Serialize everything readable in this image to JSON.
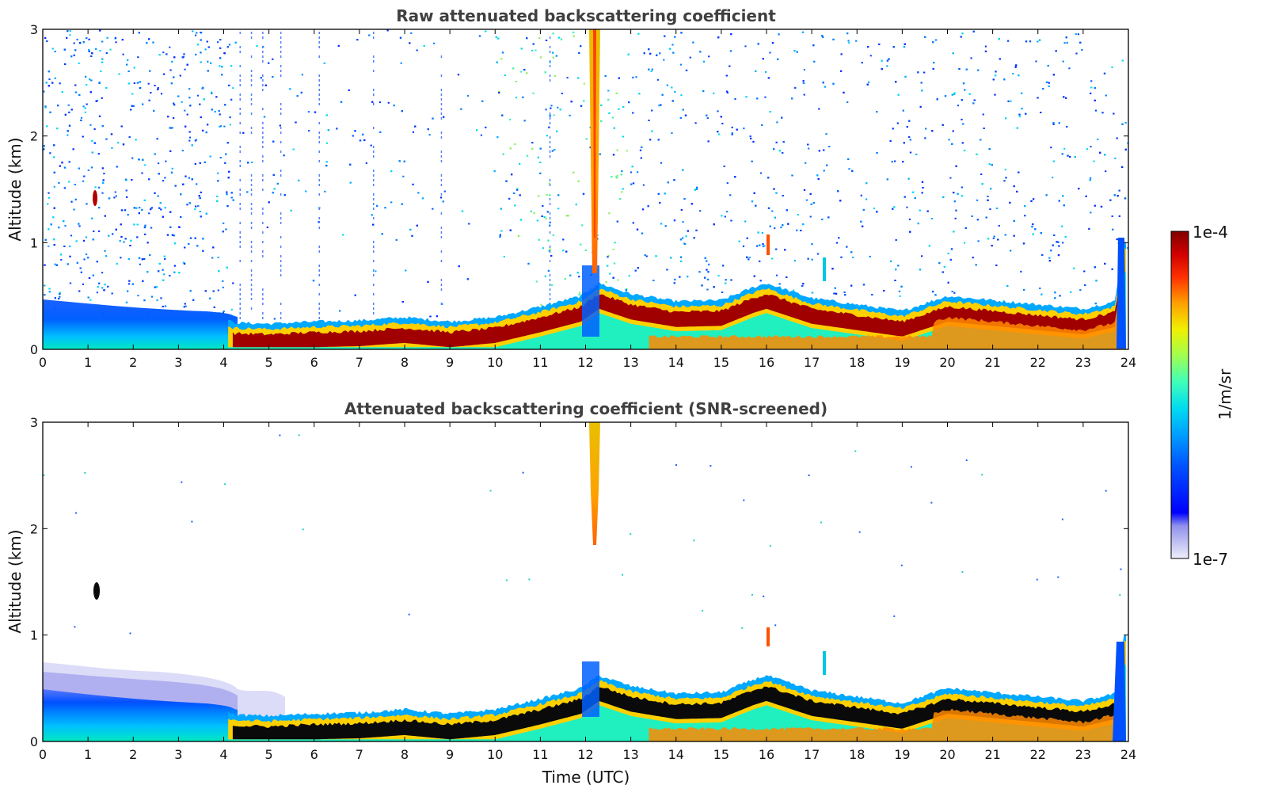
{
  "chart_data": [
    {
      "type": "heatmap",
      "title": "Raw attenuated backscattering coefficient",
      "xlabel": "",
      "ylabel": "Altitude (km)",
      "xlim": [
        0,
        24
      ],
      "ylim": [
        0,
        3
      ],
      "xticks": [
        "0",
        "1",
        "2",
        "3",
        "4",
        "5",
        "6",
        "7",
        "8",
        "9",
        "10",
        "11",
        "12",
        "13",
        "14",
        "15",
        "16",
        "17",
        "18",
        "19",
        "20",
        "21",
        "22",
        "23",
        "24"
      ],
      "yticks": [
        "0",
        "1",
        "2",
        "3"
      ],
      "aerosol_layer_top_km": {
        "x": [
          0,
          1,
          2,
          3,
          4,
          4.2,
          5,
          6,
          7,
          8,
          9,
          10,
          11,
          11.9,
          12.3,
          13,
          14,
          15,
          15.7,
          16,
          17,
          18,
          19,
          20,
          21,
          22,
          23,
          23.7,
          23.9
        ],
        "y": [
          0.45,
          0.42,
          0.38,
          0.36,
          0.3,
          0.25,
          0.24,
          0.26,
          0.27,
          0.3,
          0.26,
          0.3,
          0.4,
          0.5,
          0.62,
          0.52,
          0.45,
          0.46,
          0.58,
          0.62,
          0.48,
          0.42,
          0.36,
          0.5,
          0.46,
          0.42,
          0.38,
          0.45,
          1.0
        ]
      },
      "features": [
        {
          "label": "elevated cloud",
          "x": 1.15,
          "y_km": [
            1.32,
            1.48
          ]
        },
        {
          "label": "precipitation streak",
          "x": 12.2,
          "y_km": [
            0.4,
            3.0
          ]
        },
        {
          "label": "small cloud",
          "x": 16.0,
          "y_km": [
            0.9,
            1.1
          ]
        },
        {
          "label": "small cloud",
          "x": 17.2,
          "y_km": [
            0.62,
            0.85
          ]
        }
      ]
    },
    {
      "type": "heatmap",
      "title": "Attenuated backscattering coefficient (SNR-screened)",
      "xlabel": "Time (UTC)",
      "ylabel": "Altitude (km)",
      "xlim": [
        0,
        24
      ],
      "ylim": [
        0,
        3
      ],
      "xticks": [
        "0",
        "1",
        "2",
        "3",
        "4",
        "5",
        "6",
        "7",
        "8",
        "9",
        "10",
        "11",
        "12",
        "13",
        "14",
        "15",
        "16",
        "17",
        "18",
        "19",
        "20",
        "21",
        "22",
        "23",
        "24"
      ],
      "yticks": [
        "0",
        "1",
        "2",
        "3"
      ]
    }
  ],
  "colorbar": {
    "label": "1/m/sr",
    "min_label": "1e-7",
    "max_label": "1e-4",
    "colors": [
      "#eeeefc",
      "#c8c8f4",
      "#9a9aee",
      "#0000ff",
      "#0050ff",
      "#00a0ff",
      "#00dcf0",
      "#40ffb8",
      "#a0ff50",
      "#f0f000",
      "#ffa000",
      "#ff3000",
      "#d00000",
      "#800000"
    ]
  }
}
